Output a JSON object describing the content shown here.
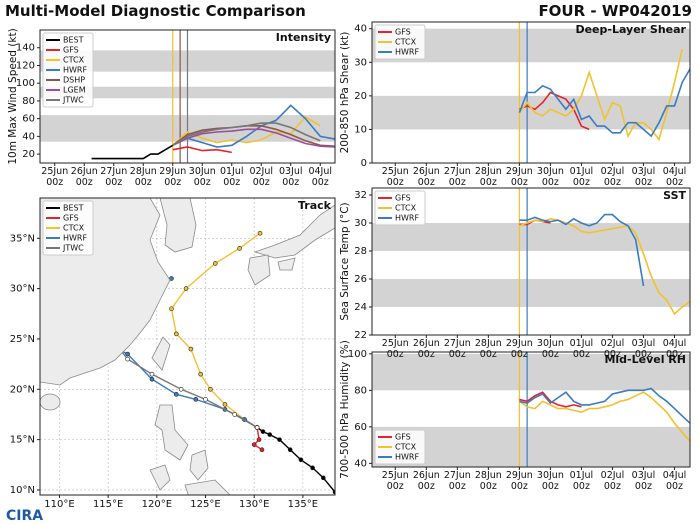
{
  "header": {
    "title": "Multi-Model Diagnostic Comparison",
    "storm": "FOUR - WP042019"
  },
  "logo": "CIRA",
  "chart_data": [
    {
      "type": "line",
      "title": "Intensity",
      "ylabel": "10m Max Wind Speed (kt)",
      "xlim": [
        "24Jun 12z",
        "04Jul 12z"
      ],
      "ylim": [
        10,
        160
      ],
      "yticks": [
        20,
        40,
        60,
        80,
        100,
        120,
        140
      ],
      "xticks": [
        "25Jun\n00z",
        "26Jun\n00z",
        "27Jun\n00z",
        "28Jun\n00z",
        "29Jun\n00z",
        "30Jun\n00z",
        "01Jul\n00z",
        "02Jul\n00z",
        "03Jul\n00z",
        "04Jul\n00z"
      ],
      "bands": [
        [
          34,
          64
        ],
        [
          83,
          96
        ],
        [
          113,
          137
        ]
      ],
      "band_color": "#d3d3d3",
      "legend": "upper left",
      "vlines": [
        {
          "x": "29Jun 00z",
          "color": "#f2c12e"
        },
        {
          "x": "29Jun 06z",
          "color": "#8c564b"
        },
        {
          "x": "29Jun 12z",
          "color": "#777777"
        }
      ],
      "series": [
        {
          "name": "BEST",
          "color": "#000000",
          "x": [
            "26Jun 06z",
            "27Jun 00z",
            "27Jun 12z",
            "28Jun 00z",
            "28Jun 06z",
            "28Jun 12z",
            "28Jun 18z",
            "29Jun 00z"
          ],
          "values": [
            15,
            15,
            15,
            15,
            20,
            20,
            25,
            30
          ]
        },
        {
          "name": "GFS",
          "color": "#e8212b",
          "x": [
            "29Jun 00z",
            "29Jun 12z",
            "30Jun 00z",
            "30Jun 12z",
            "01Jul 00z"
          ],
          "values": [
            25,
            28,
            24,
            25,
            22
          ]
        },
        {
          "name": "CTCX",
          "color": "#f2c12e",
          "x": [
            "29Jun 00z",
            "29Jun 12z",
            "30Jun 00z",
            "30Jun 12z",
            "01Jul 00z",
            "01Jul 12z",
            "02Jul 00z",
            "02Jul 12z",
            "03Jul 00z",
            "03Jul 12z",
            "04Jul 00z"
          ],
          "values": [
            30,
            45,
            38,
            33,
            36,
            33,
            36,
            45,
            43,
            62,
            52
          ]
        },
        {
          "name": "HWRF",
          "color": "#3b7bbf",
          "x": [
            "29Jun 00z",
            "29Jun 12z",
            "30Jun 00z",
            "30Jun 12z",
            "01Jul 00z",
            "01Jul 12z",
            "02Jul 00z",
            "02Jul 12z",
            "03Jul 00z",
            "03Jul 12z",
            "04Jul 00z",
            "04Jul 12z"
          ],
          "values": [
            30,
            38,
            33,
            28,
            30,
            40,
            52,
            58,
            75,
            60,
            40,
            37
          ]
        },
        {
          "name": "DSHP",
          "color": "#8c564b",
          "x": [
            "29Jun 00z",
            "29Jun 12z",
            "30Jun 00z",
            "30Jun 12z",
            "01Jul 00z",
            "01Jul 12z",
            "02Jul 00z",
            "02Jul 12z",
            "03Jul 00z",
            "03Jul 12z",
            "04Jul 00z",
            "04Jul 12z"
          ],
          "values": [
            30,
            42,
            47,
            49,
            50,
            52,
            52,
            48,
            42,
            35,
            30,
            29
          ]
        },
        {
          "name": "LGEM",
          "color": "#9b4f96",
          "x": [
            "29Jun 00z",
            "29Jun 12z",
            "30Jun 00z",
            "30Jun 12z",
            "01Jul 00z",
            "01Jul 12z",
            "02Jul 00z",
            "02Jul 12z",
            "03Jul 00z",
            "03Jul 12z",
            "04Jul 00z",
            "04Jul 12z"
          ],
          "values": [
            30,
            38,
            43,
            45,
            46,
            48,
            48,
            44,
            38,
            32,
            29,
            28
          ]
        },
        {
          "name": "JTWC",
          "color": "#777777",
          "x": [
            "29Jun 00z",
            "29Jun 12z",
            "30Jun 00z",
            "30Jun 12z",
            "01Jul 00z",
            "01Jul 12z",
            "02Jul 00z",
            "02Jul 12z",
            "03Jul 00z",
            "03Jul 12z",
            "04Jul 00z"
          ],
          "values": [
            30,
            40,
            45,
            48,
            50,
            52,
            55,
            55,
            50,
            42,
            35
          ]
        }
      ]
    },
    {
      "type": "track",
      "title": "Track",
      "xlim": [
        108,
        138.3
      ],
      "ylim": [
        9.5,
        39
      ],
      "grid": true,
      "legend": "upper left",
      "xticks": [
        {
          "value": 110,
          "label": "110°E"
        },
        {
          "value": 115,
          "label": "115°E"
        },
        {
          "value": 120,
          "label": "120°E"
        },
        {
          "value": 125,
          "label": "125°E"
        },
        {
          "value": 130,
          "label": "130°E"
        },
        {
          "value": 135,
          "label": "135°E"
        }
      ],
      "yticks": [
        {
          "value": 10,
          "label": "10°N"
        },
        {
          "value": 15,
          "label": "15°N"
        },
        {
          "value": 20,
          "label": "20°N"
        },
        {
          "value": 25,
          "label": "25°N"
        },
        {
          "value": 30,
          "label": "30°N"
        },
        {
          "value": 35,
          "label": "35°N"
        }
      ],
      "series": [
        {
          "name": "BEST",
          "color": "#000000",
          "x": [
            138.3,
            137.1,
            136.0,
            134.8,
            133.7,
            132.6,
            131.6,
            130.9,
            130.3
          ],
          "values": [
            9.8,
            11.2,
            12.2,
            13.0,
            14.0,
            15.0,
            15.5,
            15.8,
            16.2
          ]
        },
        {
          "name": "GFS",
          "color": "#e8212b",
          "x": [
            130.3,
            130.5,
            130.0,
            130.8
          ],
          "values": [
            16.2,
            15.0,
            14.5,
            14.0
          ]
        },
        {
          "name": "CTCX",
          "color": "#f2c12e",
          "x": [
            130.3,
            129.0,
            127.0,
            125.5,
            124.5,
            123.5,
            122.0,
            121.5,
            123.0,
            126.0,
            128.5,
            130.6
          ],
          "values": [
            16.2,
            17.0,
            18.5,
            20.0,
            21.5,
            24.0,
            25.5,
            28.0,
            30.0,
            32.5,
            34.0,
            35.5
          ]
        },
        {
          "name": "HWRF",
          "color": "#3b7bbf",
          "x": [
            130.3,
            129.0,
            127.0,
            124.0,
            122.0,
            119.5,
            117.0,
            116.0,
            116.5,
            118.0,
            120.0,
            121.5
          ],
          "values": [
            16.2,
            17.0,
            18.0,
            19.0,
            19.5,
            21.0,
            23.5,
            24.0,
            26.0,
            27.5,
            29.5,
            31.0
          ]
        },
        {
          "name": "JTWC",
          "color": "#777777",
          "x": [
            130.3,
            128.0,
            125.0,
            122.5,
            119.5,
            117.0,
            114.0
          ],
          "values": [
            16.2,
            17.5,
            19.0,
            20.0,
            21.5,
            23.0,
            26.7
          ]
        }
      ]
    },
    {
      "type": "line",
      "title": "Deep-Layer Shear",
      "ylabel": "200-850 hPa Shear (kt)",
      "xlim": [
        "24Jun 06z",
        "04Jul 12z"
      ],
      "ylim": [
        0,
        42
      ],
      "yticks": [
        0,
        10,
        20,
        30,
        40
      ],
      "xticks": [
        "25Jun\n00z",
        "26Jun\n00z",
        "27Jun\n00z",
        "28Jun\n00z",
        "29Jun\n00z",
        "30Jun\n00z",
        "01Jul\n00z",
        "02Jul\n00z",
        "03Jul\n00z",
        "04Jul\n00z"
      ],
      "bands": [
        [
          10,
          20
        ],
        [
          30,
          40
        ]
      ],
      "band_color": "#d3d3d3",
      "legend": "upper left",
      "vlines": [
        {
          "x": "29Jun 00z",
          "color": "#f2c12e"
        },
        {
          "x": "29Jun 06z",
          "color": "#3b7bbf"
        }
      ],
      "series": [
        {
          "name": "GFS",
          "color": "#e8212b",
          "x": [
            "29Jun 00z",
            "29Jun 06z",
            "29Jun 12z",
            "29Jun 18z",
            "30Jun 00z",
            "30Jun 06z",
            "30Jun 12z",
            "30Jun 18z",
            "01Jul 00z",
            "01Jul 06z"
          ],
          "values": [
            16,
            17,
            16,
            18,
            21,
            20,
            19,
            16,
            11,
            10
          ]
        },
        {
          "name": "CTCX",
          "color": "#f2c12e",
          "x": [
            "29Jun 00z",
            "29Jun 06z",
            "29Jun 12z",
            "29Jun 18z",
            "30Jun 00z",
            "30Jun 06z",
            "30Jun 12z",
            "30Jun 18z",
            "01Jul 00z",
            "01Jul 06z",
            "01Jul 12z",
            "01Jul 18z",
            "02Jul 00z",
            "02Jul 06z",
            "02Jul 12z",
            "02Jul 18z",
            "03Jul 00z",
            "03Jul 06z",
            "03Jul 12z",
            "03Jul 18z",
            "04Jul 00z",
            "04Jul 06z"
          ],
          "values": [
            15,
            18,
            15,
            14,
            16,
            15,
            14,
            16,
            20,
            27,
            20,
            13,
            18,
            17,
            8,
            12,
            12,
            10,
            7,
            15,
            24,
            34
          ]
        },
        {
          "name": "HWRF",
          "color": "#3b7bbf",
          "x": [
            "29Jun 00z",
            "29Jun 06z",
            "29Jun 12z",
            "29Jun 18z",
            "30Jun 00z",
            "30Jun 06z",
            "30Jun 12z",
            "30Jun 18z",
            "01Jul 00z",
            "01Jul 06z",
            "01Jul 12z",
            "01Jul 18z",
            "02Jul 00z",
            "02Jul 06z",
            "02Jul 12z",
            "02Jul 18z",
            "03Jul 00z",
            "03Jul 06z",
            "03Jul 12z",
            "03Jul 18z",
            "04Jul 00z",
            "04Jul 06z",
            "04Jul 12z"
          ],
          "values": [
            15,
            21,
            21,
            23,
            22,
            19,
            16,
            19,
            13,
            14,
            11,
            11,
            9,
            9,
            12,
            12,
            10,
            8,
            12,
            17,
            17,
            24,
            28
          ]
        }
      ]
    },
    {
      "type": "line",
      "title": "SST",
      "ylabel": "Sea Surface Temp (°C)",
      "xlim": [
        "24Jun 06z",
        "04Jul 12z"
      ],
      "ylim": [
        22,
        32.5
      ],
      "yticks": [
        22,
        24,
        26,
        28,
        30,
        32
      ],
      "xticks": [
        "25Jun\n00z",
        "26Jun\n00z",
        "27Jun\n00z",
        "28Jun\n00z",
        "29Jun\n00z",
        "30Jun\n00z",
        "01Jul\n00z",
        "02Jul\n00z",
        "03Jul\n00z",
        "04Jul\n00z"
      ],
      "bands": [
        [
          24,
          26
        ],
        [
          28,
          30
        ]
      ],
      "band_color": "#d3d3d3",
      "legend": "upper left",
      "vlines": [
        {
          "x": "29Jun 00z",
          "color": "#f2c12e"
        },
        {
          "x": "29Jun 06z",
          "color": "#3b7bbf"
        }
      ],
      "series": [
        {
          "name": "GFS",
          "color": "#e8212b",
          "x": [
            "29Jun 00z",
            "29Jun 06z",
            "29Jun 12z",
            "29Jun 18z",
            "30Jun 00z"
          ],
          "values": [
            29.9,
            29.9,
            30.2,
            30.1,
            30.0
          ]
        },
        {
          "name": "CTCX",
          "color": "#f2c12e",
          "x": [
            "29Jun 00z",
            "29Jun 06z",
            "29Jun 12z",
            "29Jun 18z",
            "30Jun 00z",
            "30Jun 06z",
            "30Jun 12z",
            "30Jun 18z",
            "01Jul 00z",
            "01Jul 06z",
            "01Jul 12z",
            "01Jul 18z",
            "02Jul 00z",
            "02Jul 06z",
            "02Jul 12z",
            "02Jul 18z",
            "03Jul 00z",
            "03Jul 06z",
            "03Jul 12z",
            "03Jul 18z",
            "04Jul 00z",
            "04Jul 06z",
            "04Jul 12z"
          ],
          "values": [
            29.8,
            30.0,
            30.2,
            30.1,
            30.3,
            30.2,
            30.0,
            29.8,
            29.4,
            29.3,
            29.4,
            29.5,
            29.6,
            29.7,
            29.8,
            29.3,
            27.8,
            26.2,
            25.0,
            24.5,
            23.5,
            24.0,
            24.4
          ]
        },
        {
          "name": "HWRF",
          "color": "#3b7bbf",
          "x": [
            "29Jun 00z",
            "29Jun 06z",
            "29Jun 12z",
            "29Jun 18z",
            "30Jun 00z",
            "30Jun 06z",
            "30Jun 12z",
            "30Jun 18z",
            "01Jul 00z",
            "01Jul 06z",
            "01Jul 12z",
            "01Jul 18z",
            "02Jul 00z",
            "02Jul 06z",
            "02Jul 12z",
            "02Jul 18z",
            "03Jul 00z"
          ],
          "values": [
            30.2,
            30.2,
            30.4,
            30.2,
            30.1,
            30.2,
            29.9,
            30.3,
            30.0,
            29.8,
            30.0,
            30.6,
            30.6,
            30.1,
            29.8,
            28.8,
            25.5
          ]
        }
      ]
    },
    {
      "type": "line",
      "title": "Mid-Level RH",
      "ylabel": "700-500 hPa Humidity (%)",
      "xlim": [
        "24Jun 06z",
        "04Jul 12z"
      ],
      "ylim": [
        38,
        101
      ],
      "yticks": [
        40,
        60,
        80,
        100
      ],
      "xticks": [
        "25Jun\n00z",
        "26Jun\n00z",
        "27Jun\n00z",
        "28Jun\n00z",
        "29Jun\n00z",
        "30Jun\n00z",
        "01Jul\n00z",
        "02Jul\n00z",
        "03Jul\n00z",
        "04Jul\n00z"
      ],
      "bands": [
        [
          38,
          60
        ],
        [
          80,
          100
        ]
      ],
      "band_color": "#d3d3d3",
      "legend": "lower left",
      "vlines": [
        {
          "x": "29Jun 00z",
          "color": "#f2c12e"
        },
        {
          "x": "29Jun 06z",
          "color": "#3b7bbf"
        }
      ],
      "series": [
        {
          "name": "GFS",
          "color": "#e8212b",
          "x": [
            "29Jun 00z",
            "29Jun 06z",
            "29Jun 12z",
            "29Jun 18z",
            "30Jun 00z",
            "30Jun 06z",
            "30Jun 12z",
            "30Jun 18z",
            "01Jul 00z"
          ],
          "values": [
            75,
            74,
            77,
            79,
            74,
            72,
            71,
            72,
            71
          ]
        },
        {
          "name": "CTCX",
          "color": "#f2c12e",
          "x": [
            "29Jun 00z",
            "29Jun 06z",
            "29Jun 12z",
            "29Jun 18z",
            "30Jun 00z",
            "30Jun 06z",
            "30Jun 12z",
            "30Jun 18z",
            "01Jul 00z",
            "01Jul 06z",
            "01Jul 12z",
            "01Jul 18z",
            "02Jul 00z",
            "02Jul 06z",
            "02Jul 12z",
            "02Jul 18z",
            "03Jul 00z",
            "03Jul 06z",
            "03Jul 12z",
            "03Jul 18z",
            "04Jul 00z",
            "04Jul 06z",
            "04Jul 12z"
          ],
          "values": [
            74,
            71,
            70,
            74,
            72,
            70,
            70,
            69,
            68,
            70,
            70,
            71,
            72,
            74,
            75,
            77,
            79,
            76,
            72,
            68,
            62,
            57,
            52
          ]
        },
        {
          "name": "HWRF",
          "color": "#3b7bbf",
          "x": [
            "29Jun 00z",
            "29Jun 06z",
            "29Jun 12z",
            "29Jun 18z",
            "30Jun 00z",
            "30Jun 06z",
            "30Jun 12z",
            "30Jun 18z",
            "01Jul 00z",
            "01Jul 06z",
            "01Jul 12z",
            "01Jul 18z",
            "02Jul 00z",
            "02Jul 06z",
            "02Jul 12z",
            "02Jul 18z",
            "03Jul 00z",
            "03Jul 06z",
            "03Jul 12z",
            "03Jul 18z",
            "04Jul 00z",
            "04Jul 06z",
            "04Jul 12z"
          ],
          "values": [
            74,
            73,
            76,
            78,
            73,
            76,
            79,
            74,
            72,
            72,
            73,
            74,
            78,
            79,
            80,
            80,
            80,
            81,
            77,
            74,
            70,
            66,
            62
          ]
        }
      ]
    }
  ]
}
